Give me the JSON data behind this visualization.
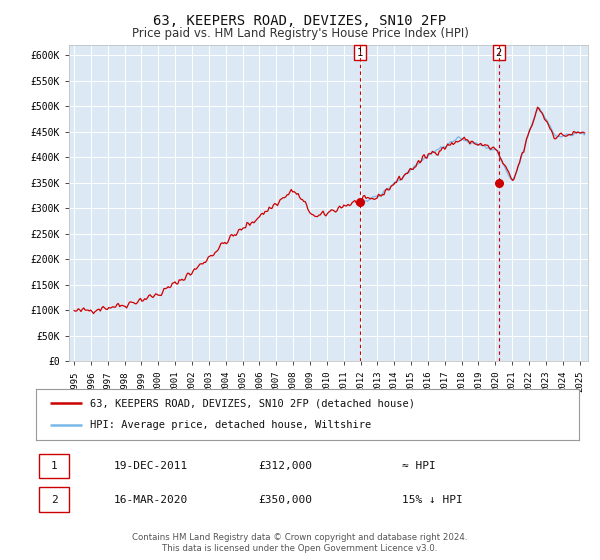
{
  "title": "63, KEEPERS ROAD, DEVIZES, SN10 2FP",
  "subtitle": "Price paid vs. HM Land Registry's House Price Index (HPI)",
  "title_fontsize": 10,
  "subtitle_fontsize": 8.5,
  "background_color": "#ffffff",
  "plot_bg_color": "#dce9f5",
  "grid_color": "#ffffff",
  "ylabel_ticks": [
    "£0",
    "£50K",
    "£100K",
    "£150K",
    "£200K",
    "£250K",
    "£300K",
    "£350K",
    "£400K",
    "£450K",
    "£500K",
    "£550K",
    "£600K"
  ],
  "ytick_values": [
    0,
    50000,
    100000,
    150000,
    200000,
    250000,
    300000,
    350000,
    400000,
    450000,
    500000,
    550000,
    600000
  ],
  "ylim": [
    0,
    620000
  ],
  "xlim_start": 1994.7,
  "xlim_end": 2025.5,
  "hpi_line_color": "#7ab8e8",
  "price_line_color": "#cc0000",
  "marker_color": "#cc0000",
  "vline_color": "#cc0000",
  "annotation_box_color": "#cc0000",
  "sale1_x": 2011.97,
  "sale1_y": 312000,
  "sale1_label": "1",
  "sale2_x": 2020.21,
  "sale2_y": 350000,
  "sale2_label": "2",
  "legend_line1": "63, KEEPERS ROAD, DEVIZES, SN10 2FP (detached house)",
  "legend_line2": "HPI: Average price, detached house, Wiltshire",
  "table_row1": [
    "1",
    "19-DEC-2011",
    "£312,000",
    "≈ HPI"
  ],
  "table_row2": [
    "2",
    "16-MAR-2020",
    "£350,000",
    "15% ↓ HPI"
  ],
  "footer1": "Contains HM Land Registry data © Crown copyright and database right 2024.",
  "footer2": "This data is licensed under the Open Government Licence v3.0.",
  "hpi_start_year": 2011.97
}
